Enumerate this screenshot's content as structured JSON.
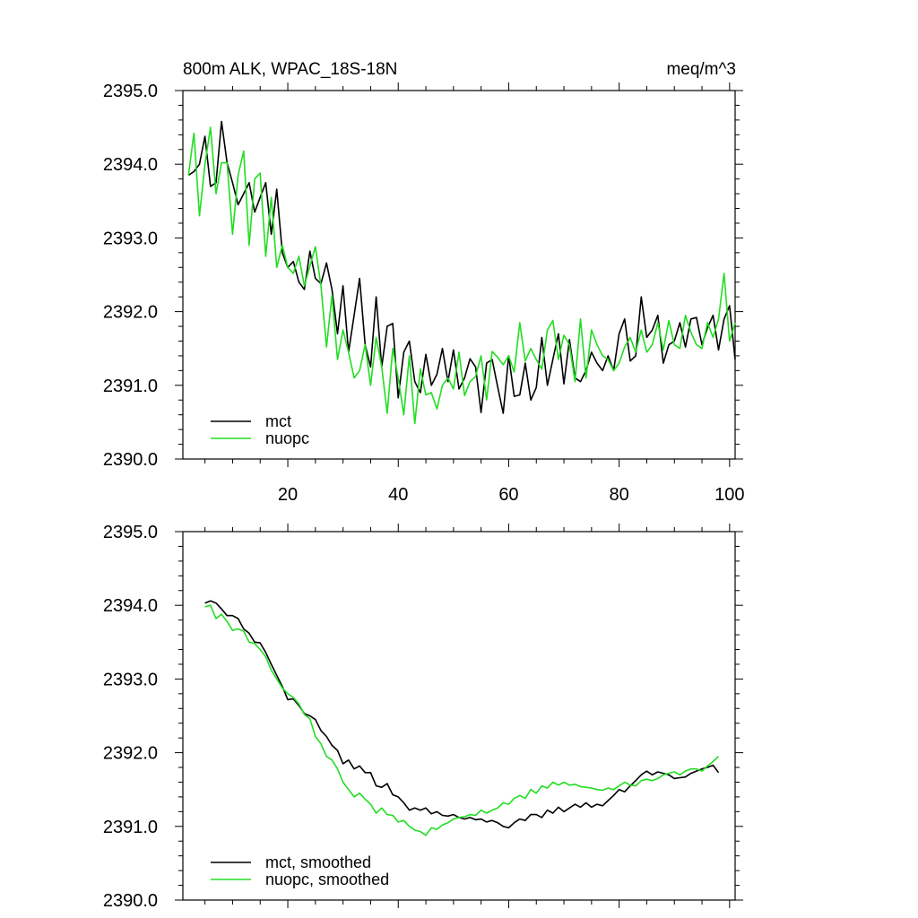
{
  "chart_data": [
    {
      "type": "line",
      "title": "800m ALK, WPAC_18S-18N",
      "units": "meq/m^3",
      "xlabel": "",
      "ylabel": "",
      "xlim": [
        1,
        101
      ],
      "ylim": [
        2390.0,
        2395.0
      ],
      "xticks": [
        20,
        40,
        60,
        80,
        100
      ],
      "xtick_labels": [
        "20",
        "40",
        "60",
        "80",
        "100"
      ],
      "yticks": [
        2390,
        2391,
        2392,
        2393,
        2394,
        2395
      ],
      "ytick_labels": [
        "2390.0",
        "2391.0",
        "2392.0",
        "2393.0",
        "2394.0",
        "2395.0"
      ],
      "grid": false,
      "legend_position": "bottom-left",
      "x": [
        2,
        3,
        4,
        5,
        6,
        7,
        8,
        9,
        10,
        11,
        12,
        13,
        14,
        15,
        16,
        17,
        18,
        19,
        20,
        21,
        22,
        23,
        24,
        25,
        26,
        27,
        28,
        29,
        30,
        31,
        32,
        33,
        34,
        35,
        36,
        37,
        38,
        39,
        40,
        41,
        42,
        43,
        44,
        45,
        46,
        47,
        48,
        49,
        50,
        51,
        52,
        53,
        54,
        55,
        56,
        57,
        58,
        59,
        60,
        61,
        62,
        63,
        64,
        65,
        66,
        67,
        68,
        69,
        70,
        71,
        72,
        73,
        74,
        75,
        76,
        77,
        78,
        79,
        80,
        81,
        82,
        83,
        84,
        85,
        86,
        87,
        88,
        89,
        90,
        91,
        92,
        93,
        94,
        95,
        96,
        97,
        98,
        99,
        100,
        101
      ],
      "series": [
        {
          "name": "mct",
          "color": "#000000",
          "values": [
            2393.85,
            2393.9,
            2394.0,
            2394.38,
            2393.7,
            2393.75,
            2394.58,
            2394.02,
            2393.75,
            2393.45,
            2393.6,
            2393.75,
            2393.35,
            2393.55,
            2393.75,
            2393.05,
            2393.66,
            2392.8,
            2392.6,
            2392.68,
            2392.4,
            2392.3,
            2392.82,
            2392.45,
            2392.38,
            2392.66,
            2392.3,
            2391.7,
            2392.35,
            2391.45,
            2391.95,
            2392.45,
            2391.55,
            2391.25,
            2392.2,
            2391.25,
            2391.8,
            2391.84,
            2390.83,
            2391.45,
            2391.6,
            2391.05,
            2390.9,
            2391.42,
            2391.0,
            2391.15,
            2391.5,
            2391.05,
            2391.48,
            2390.95,
            2391.1,
            2391.36,
            2391.25,
            2390.63,
            2391.3,
            2391.35,
            2390.98,
            2390.62,
            2391.4,
            2390.85,
            2390.87,
            2391.3,
            2390.8,
            2390.97,
            2391.65,
            2391.0,
            2391.35,
            2391.7,
            2391.02,
            2391.62,
            2391.1,
            2391.05,
            2391.2,
            2391.45,
            2391.3,
            2391.2,
            2391.4,
            2391.2,
            2391.7,
            2391.9,
            2391.33,
            2391.4,
            2392.2,
            2391.65,
            2391.75,
            2391.95,
            2391.3,
            2391.55,
            2391.6,
            2391.85,
            2391.52,
            2391.9,
            2391.92,
            2391.55,
            2391.78,
            2391.95,
            2391.48,
            2391.9,
            2392.08,
            2391.35
          ]
        },
        {
          "name": "nuopc",
          "color": "#22dd22",
          "values": [
            2393.85,
            2394.42,
            2393.3,
            2394.0,
            2394.5,
            2393.6,
            2394.02,
            2394.02,
            2393.05,
            2393.85,
            2394.18,
            2392.9,
            2393.8,
            2393.88,
            2392.75,
            2393.55,
            2392.6,
            2392.9,
            2392.6,
            2392.52,
            2392.75,
            2392.35,
            2392.62,
            2392.88,
            2392.35,
            2391.52,
            2392.22,
            2391.35,
            2391.75,
            2391.45,
            2391.1,
            2391.2,
            2391.55,
            2391.0,
            2391.65,
            2391.25,
            2390.62,
            2391.5,
            2391.1,
            2390.6,
            2391.4,
            2390.48,
            2391.22,
            2390.87,
            2390.9,
            2390.68,
            2391.0,
            2391.1,
            2390.95,
            2391.45,
            2390.86,
            2391.05,
            2391.12,
            2391.4,
            2390.8,
            2391.46,
            2391.38,
            2391.28,
            2391.4,
            2391.18,
            2391.85,
            2391.33,
            2391.5,
            2391.35,
            2391.22,
            2391.75,
            2391.88,
            2391.35,
            2391.68,
            2391.55,
            2391.05,
            2391.9,
            2391.1,
            2391.75,
            2391.55,
            2391.4,
            2391.35,
            2391.2,
            2391.3,
            2391.52,
            2391.65,
            2391.45,
            2391.75,
            2391.45,
            2391.55,
            2391.85,
            2391.48,
            2391.88,
            2391.55,
            2391.5,
            2391.95,
            2391.72,
            2391.55,
            2391.5,
            2391.85,
            2391.65,
            2391.9,
            2392.52,
            2391.6,
            2391.85
          ]
        }
      ]
    },
    {
      "type": "line",
      "title": "",
      "xlabel": "",
      "ylabel": "",
      "xlim": [
        1,
        101
      ],
      "ylim": [
        2390.0,
        2395.0
      ],
      "xticks": [
        20,
        40,
        60,
        80,
        100
      ],
      "yticks": [
        2390,
        2391,
        2392,
        2393,
        2394,
        2395
      ],
      "ytick_labels": [
        "2390.0",
        "2391.0",
        "2392.0",
        "2393.0",
        "2394.0",
        "2395.0"
      ],
      "grid": false,
      "legend_position": "bottom-left",
      "x": [
        5,
        6,
        7,
        8,
        9,
        10,
        11,
        12,
        13,
        14,
        15,
        16,
        17,
        18,
        19,
        20,
        21,
        22,
        23,
        24,
        25,
        26,
        27,
        28,
        29,
        30,
        31,
        32,
        33,
        34,
        35,
        36,
        37,
        38,
        39,
        40,
        41,
        42,
        43,
        44,
        45,
        46,
        47,
        48,
        49,
        50,
        51,
        52,
        53,
        54,
        55,
        56,
        57,
        58,
        59,
        60,
        61,
        62,
        63,
        64,
        65,
        66,
        67,
        68,
        69,
        70,
        71,
        72,
        73,
        74,
        75,
        76,
        77,
        78,
        79,
        80,
        81,
        82,
        83,
        84,
        85,
        86,
        87,
        88,
        89,
        90,
        91,
        92,
        93,
        94,
        95,
        96,
        97,
        98
      ],
      "series": [
        {
          "name": "mct, smoothed",
          "color": "#000000",
          "values": [
            2394.03,
            2394.06,
            2394.03,
            2393.95,
            2393.86,
            2393.86,
            2393.82,
            2393.68,
            2393.62,
            2393.5,
            2393.49,
            2393.36,
            2393.2,
            2393.05,
            2392.9,
            2392.72,
            2392.73,
            2392.64,
            2392.53,
            2392.5,
            2392.45,
            2392.3,
            2392.22,
            2392.1,
            2392.03,
            2391.85,
            2391.9,
            2391.78,
            2391.82,
            2391.73,
            2391.73,
            2391.55,
            2391.53,
            2391.58,
            2391.43,
            2391.4,
            2391.32,
            2391.22,
            2391.25,
            2391.22,
            2391.25,
            2391.17,
            2391.2,
            2391.15,
            2391.14,
            2391.16,
            2391.12,
            2391.1,
            2391.12,
            2391.09,
            2391.1,
            2391.06,
            2391.08,
            2391.05,
            2391.0,
            2390.98,
            2391.05,
            2391.1,
            2391.08,
            2391.16,
            2391.16,
            2391.12,
            2391.22,
            2391.18,
            2391.26,
            2391.2,
            2391.25,
            2391.3,
            2391.26,
            2391.32,
            2391.26,
            2391.3,
            2391.28,
            2391.35,
            2391.42,
            2391.5,
            2391.47,
            2391.55,
            2391.62,
            2391.7,
            2391.75,
            2391.7,
            2391.74,
            2391.72,
            2391.7,
            2391.65,
            2391.66,
            2391.67,
            2391.72,
            2391.75,
            2391.78,
            2391.8,
            2391.83,
            2391.73
          ]
        },
        {
          "name": "nuopc, smoothed",
          "color": "#22dd22",
          "values": [
            2393.98,
            2394.0,
            2393.82,
            2393.88,
            2393.78,
            2393.66,
            2393.68,
            2393.65,
            2393.5,
            2393.48,
            2393.4,
            2393.3,
            2393.12,
            2393.0,
            2392.88,
            2392.8,
            2392.75,
            2392.66,
            2392.52,
            2392.46,
            2392.22,
            2392.12,
            2391.95,
            2391.9,
            2391.78,
            2391.6,
            2391.5,
            2391.4,
            2391.45,
            2391.37,
            2391.3,
            2391.18,
            2391.25,
            2391.16,
            2391.15,
            2391.06,
            2391.08,
            2391.0,
            2390.95,
            2390.93,
            2390.88,
            2390.98,
            2390.96,
            2391.02,
            2391.05,
            2391.1,
            2391.12,
            2391.13,
            2391.16,
            2391.15,
            2391.22,
            2391.18,
            2391.22,
            2391.25,
            2391.32,
            2391.3,
            2391.38,
            2391.42,
            2391.38,
            2391.5,
            2391.45,
            2391.55,
            2391.52,
            2391.6,
            2391.56,
            2391.6,
            2391.56,
            2391.57,
            2391.54,
            2391.53,
            2391.52,
            2391.5,
            2391.49,
            2391.52,
            2391.5,
            2391.55,
            2391.6,
            2391.56,
            2391.55,
            2391.62,
            2391.64,
            2391.62,
            2391.65,
            2391.7,
            2391.72,
            2391.74,
            2391.7,
            2391.75,
            2391.78,
            2391.78,
            2391.75,
            2391.82,
            2391.88,
            2391.95
          ]
        }
      ]
    }
  ]
}
